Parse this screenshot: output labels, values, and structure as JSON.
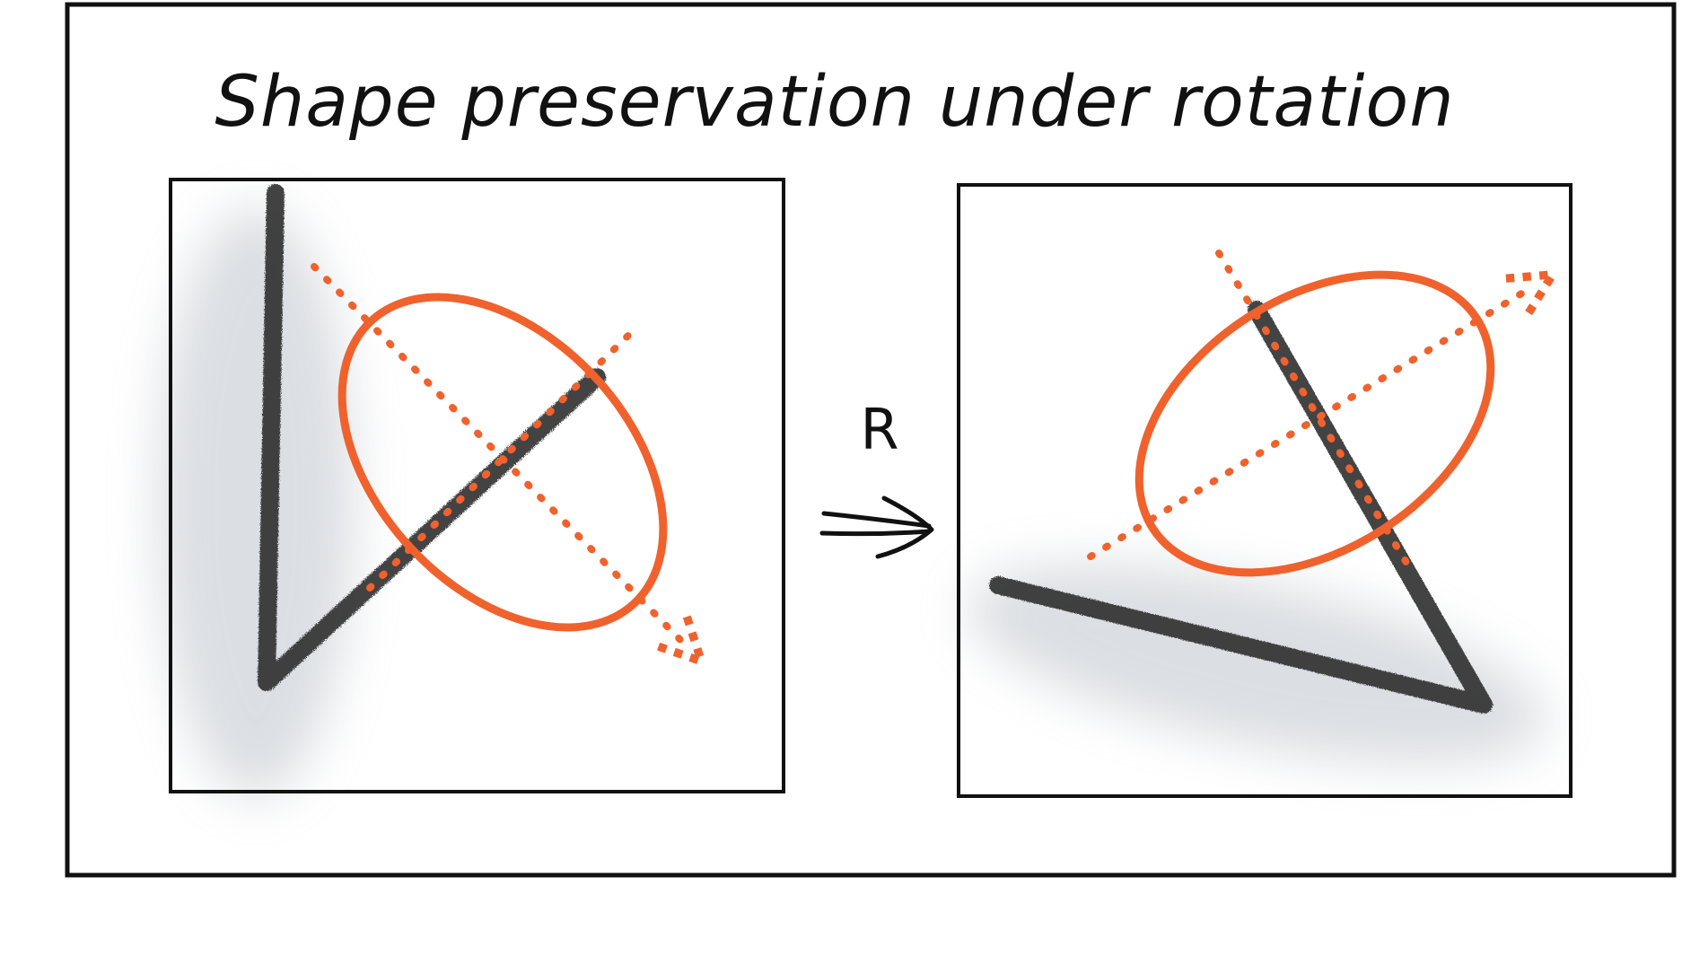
{
  "title": "Shape preservation under rotation",
  "operator_label": "R",
  "colors": {
    "frame": "#111111",
    "stroke_shape": "#2a2a2a",
    "ellipse": "#f0622d",
    "axes": "#f0622d",
    "shadow": "#9aa3ad"
  },
  "panels": [
    {
      "name": "before-rotation",
      "shape": "L-shaped pencil stroke",
      "ellipse_orientation": "tilted down-right"
    },
    {
      "name": "after-rotation",
      "shape": "rotated L-shaped pencil stroke",
      "ellipse_orientation": "tilted up-right"
    }
  ],
  "arrow_icon": "double-arrow-right-icon"
}
